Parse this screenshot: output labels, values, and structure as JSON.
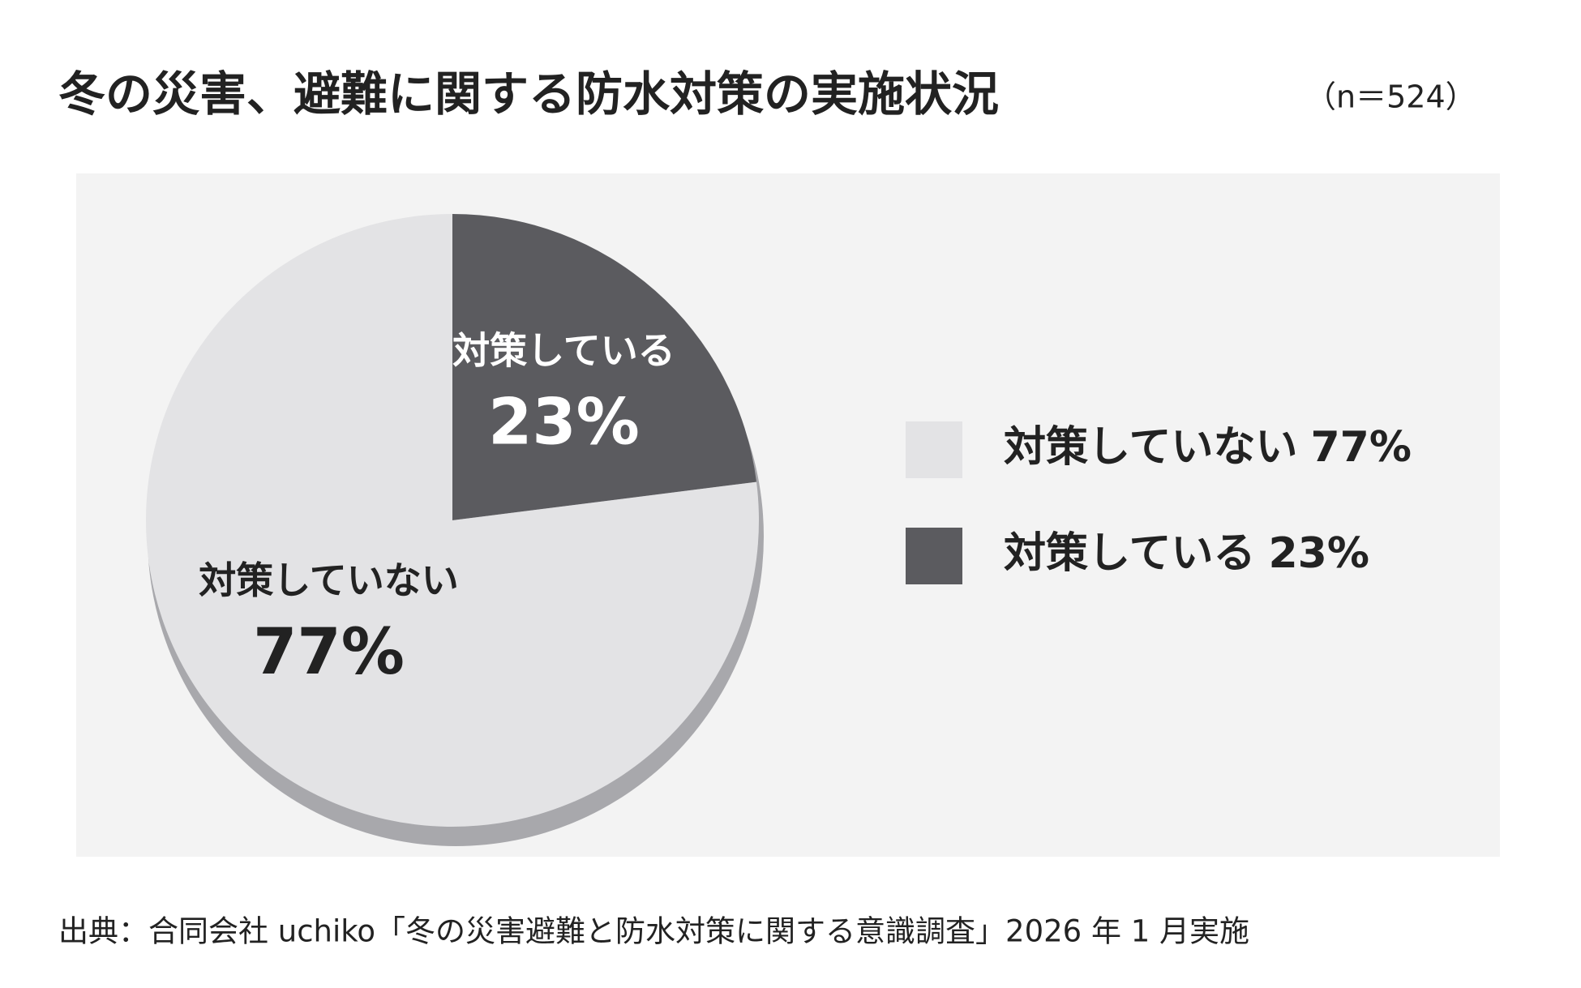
{
  "chart_data": {
    "type": "pie",
    "title": "冬の災害、避難に関する防水対策の実施状況",
    "subtitle": "（n＝524）",
    "categories": [
      "対策していない",
      "対策している"
    ],
    "values": [
      77,
      23
    ],
    "value_labels": [
      "77%",
      "23%"
    ],
    "colors": [
      "#e3e3e5",
      "#5b5b5f"
    ],
    "legend": "right",
    "source": "出典：合同会社 uchiko「冬の災害避難と防水対策に関する意識調査」2026 年 1 月実施"
  }
}
